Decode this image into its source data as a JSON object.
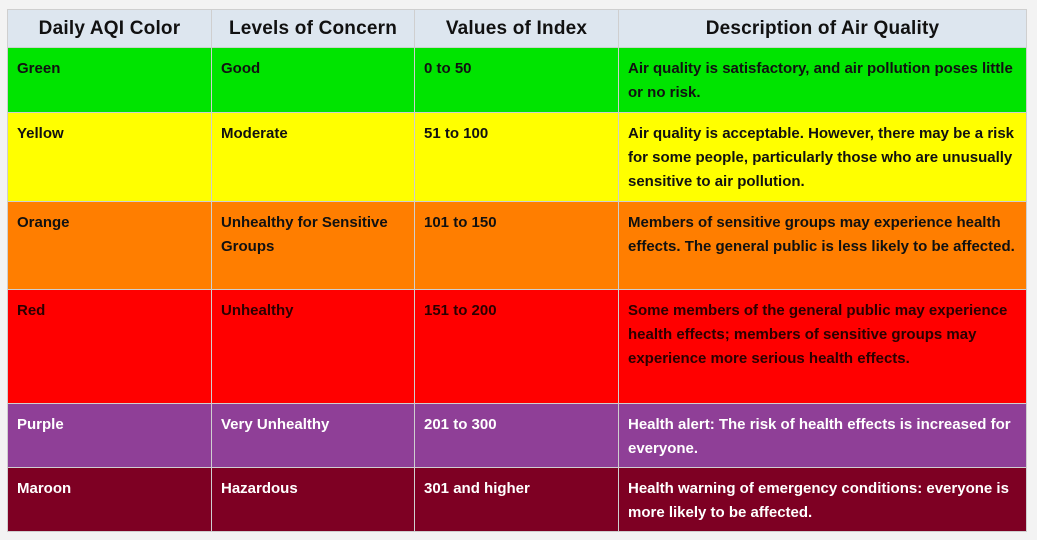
{
  "headers": {
    "color": "Daily AQI Color",
    "concern": "Levels of Concern",
    "values": "Values of Index",
    "description": "Description of Air Quality"
  },
  "rows": [
    {
      "color": "Green",
      "concern": "Good",
      "values": "0 to 50",
      "description": "Air quality is satisfactory, and air pollution poses little or no risk.",
      "bg": "#00e400",
      "text_color": "#111111"
    },
    {
      "color": "Yellow",
      "concern": "Moderate",
      "values": "51 to 100",
      "description": "Air quality is acceptable. However, there may be a risk for some people, particularly those who are unusually sensitive to air pollution.",
      "bg": "#ffff00",
      "text_color": "#111111"
    },
    {
      "color": "Orange",
      "concern": "Unhealthy for Sensitive Groups",
      "values": "101 to 150",
      "description": "Members of sensitive groups may experience health effects. The general public is less likely to be affected.",
      "bg": "#ff7e00",
      "text_color": "#111111"
    },
    {
      "color": "Red",
      "concern": "Unhealthy",
      "values": "151 to 200",
      "description": "Some members of the general public may experience health effects; members of sensitive groups may experience more serious health effects.",
      "bg": "#ff0000",
      "text_color": "#2a0000"
    },
    {
      "color": "Purple",
      "concern": "Very Unhealthy",
      "values": "201 to 300",
      "description": "Health alert: The risk of health effects is increased for everyone.",
      "bg": "#8f3f97",
      "text_color": "#ffffff"
    },
    {
      "color": "Maroon",
      "concern": "Hazardous",
      "values": "301 and higher",
      "description": "Health warning of emergency conditions: everyone is more likely to be affected.",
      "bg": "#7e0023",
      "text_color": "#ffffff"
    }
  ],
  "header_bg": "#dde6ef"
}
